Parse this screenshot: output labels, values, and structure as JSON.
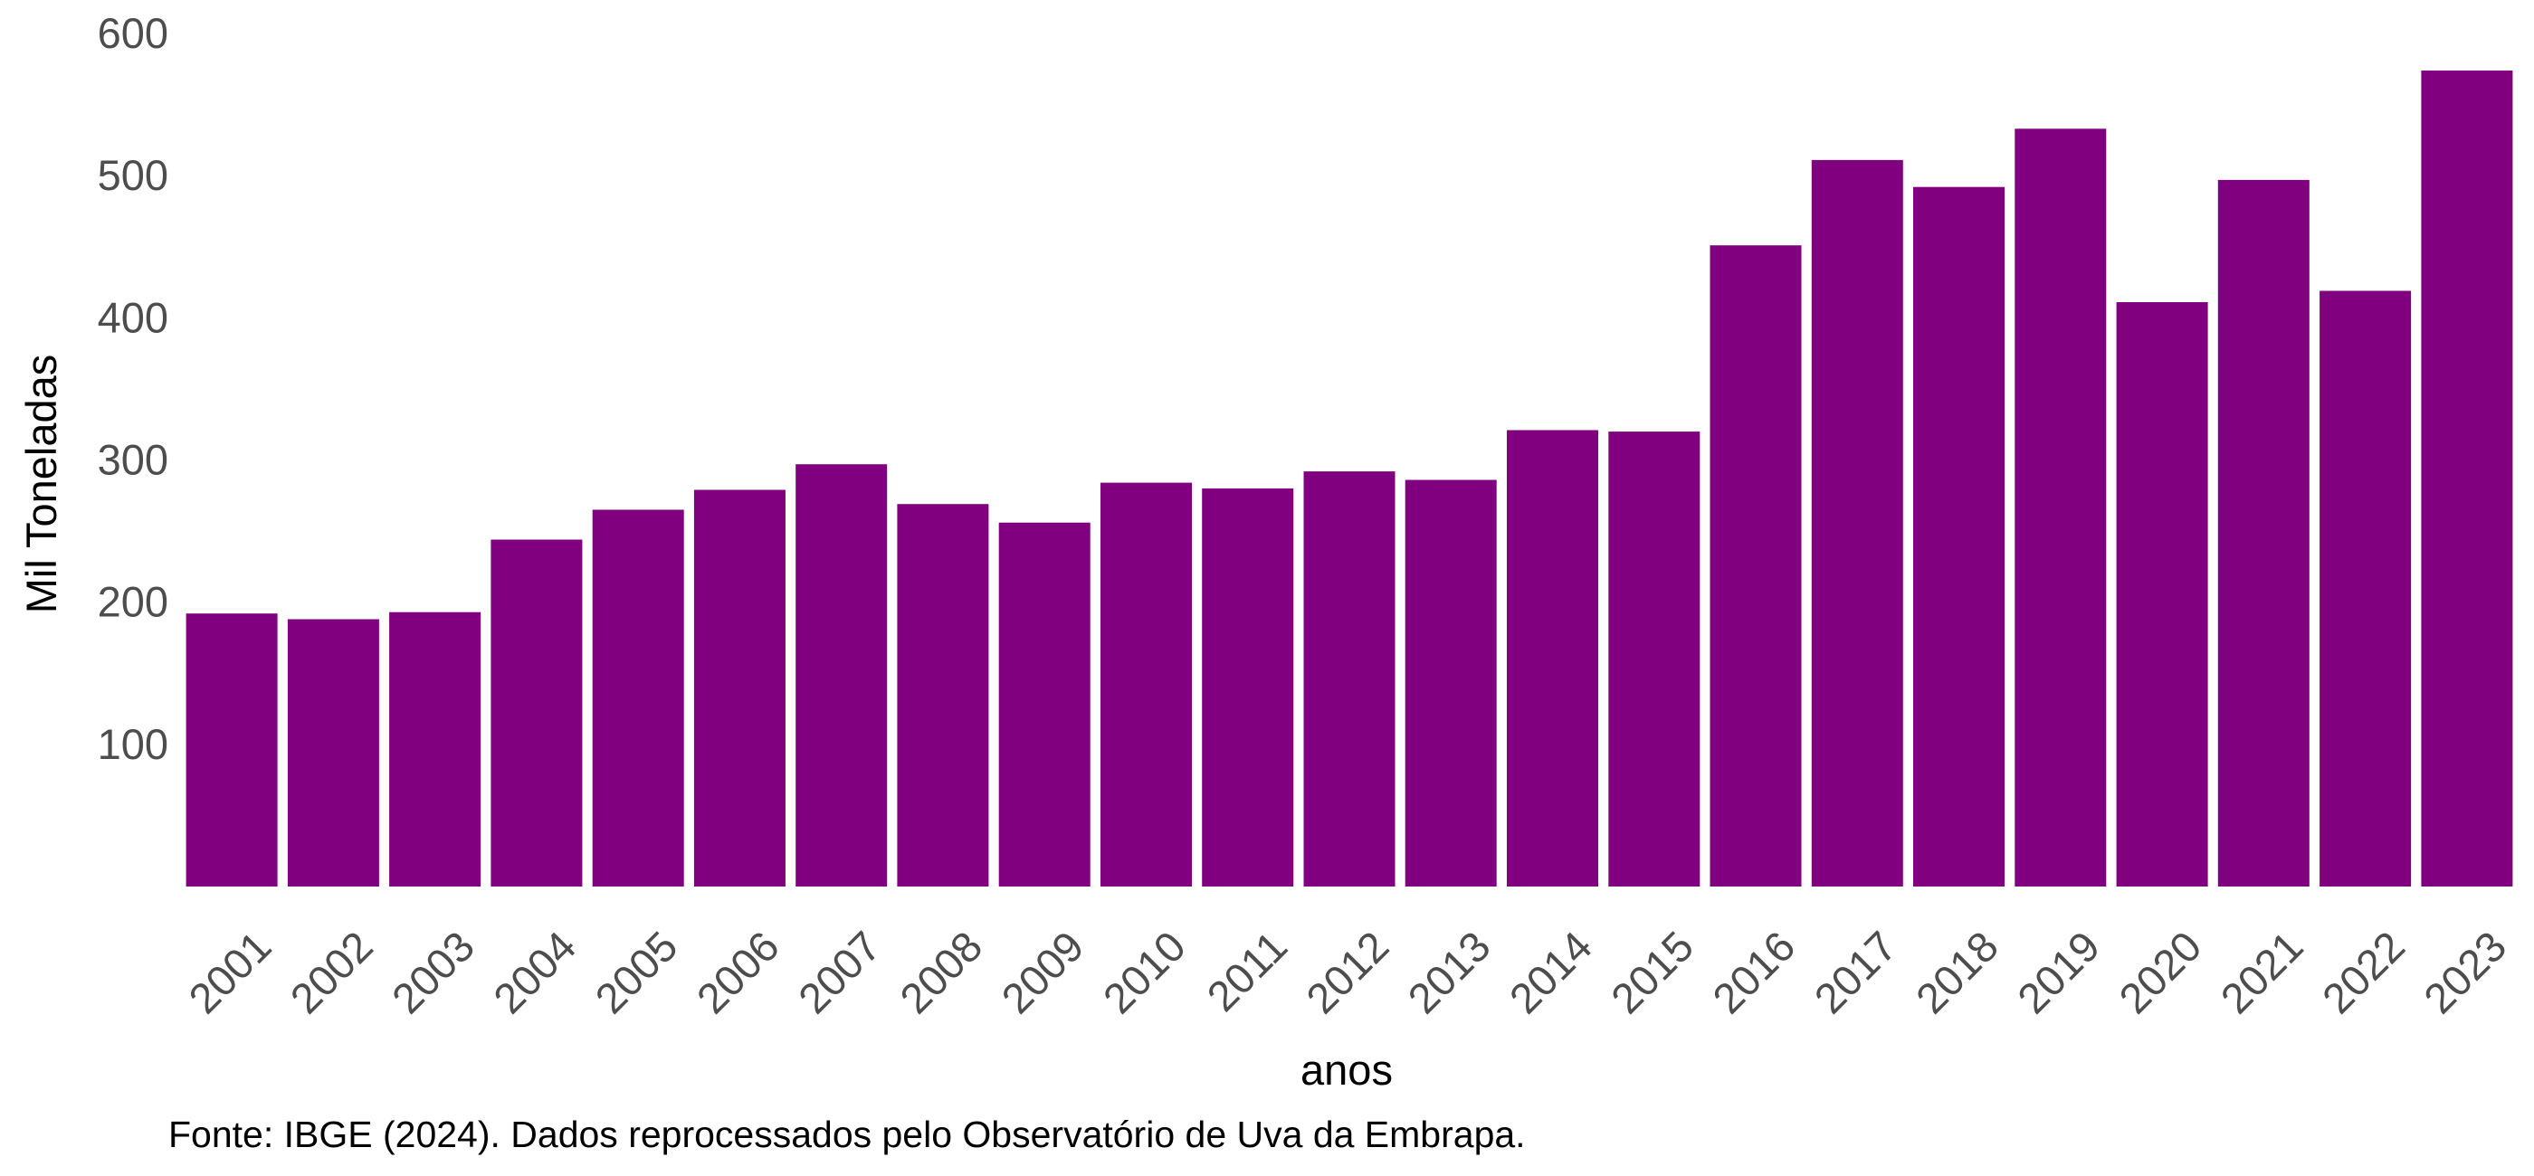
{
  "chart_data": {
    "type": "bar",
    "categories": [
      "2001",
      "2002",
      "2003",
      "2004",
      "2005",
      "2006",
      "2007",
      "2008",
      "2009",
      "2010",
      "2011",
      "2012",
      "2013",
      "2014",
      "2015",
      "2016",
      "2017",
      "2018",
      "2019",
      "2020",
      "2021",
      "2022",
      "2023"
    ],
    "values": [
      192,
      188,
      193,
      244,
      265,
      279,
      297,
      269,
      256,
      284,
      280,
      292,
      286,
      321,
      320,
      451,
      511,
      492,
      533,
      411,
      497,
      419,
      574
    ],
    "xlabel": "anos",
    "ylabel": "Mil Toneladas",
    "ylim": [
      0,
      600
    ],
    "yticks": [
      100,
      200,
      300,
      400,
      500,
      600
    ],
    "caption": "Fonte: IBGE (2024). Dados reprocessados pelo Observatório de Uva da Embrapa.",
    "bar_color": "#800080",
    "grid": false,
    "legend": "none"
  }
}
